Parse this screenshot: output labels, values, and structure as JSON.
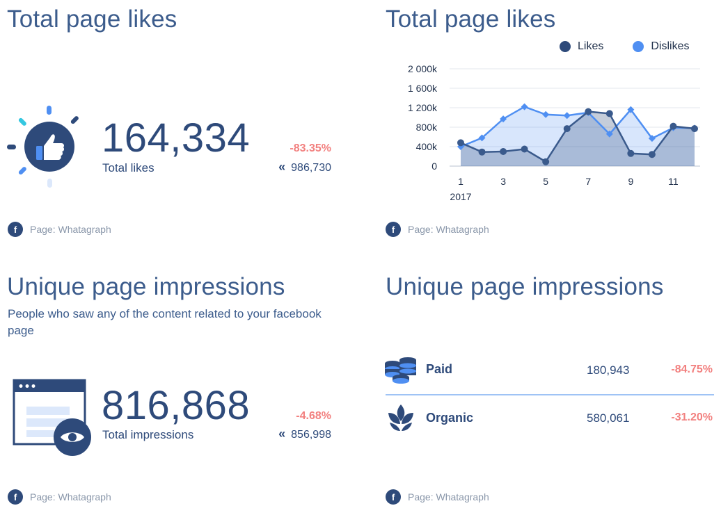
{
  "likes_card": {
    "title": "Total page likes",
    "value": "164,334",
    "label": "Total likes",
    "change": "-83.35%",
    "previous": "986,730",
    "footer": "Page: Whatagraph"
  },
  "likes_chart": {
    "title": "Total page likes",
    "footer": "Page: Whatagraph"
  },
  "impressions_card": {
    "title": "Unique page impressions",
    "description": "People who saw any of the content related to your facebook page",
    "value": "816,868",
    "label": "Total impressions",
    "change": "-4.68%",
    "previous": "856,998",
    "footer": "Page: Whatagraph"
  },
  "impressions_breakdown": {
    "title": "Unique page impressions",
    "rows": [
      {
        "label": "Paid",
        "value": "180,943",
        "change": "-84.75%",
        "icon": "coins-icon"
      },
      {
        "label": "Organic",
        "value": "580,061",
        "change": "-31.20%",
        "icon": "plant-icon"
      }
    ],
    "footer": "Page: Whatagraph"
  },
  "colors": {
    "primary": "#2e4a7a",
    "likes_series": "#3a5a8c",
    "dislikes_series": "#4f8ff2",
    "negative": "#f2807f",
    "muted": "#8a97aa"
  },
  "chart_data": {
    "type": "line",
    "x": [
      1,
      2,
      3,
      4,
      5,
      6,
      7,
      8,
      9,
      10,
      11,
      12
    ],
    "x_tick_labels": [
      "1",
      "3",
      "5",
      "7",
      "9",
      "11"
    ],
    "x_ticks": [
      1,
      3,
      5,
      7,
      9,
      11
    ],
    "x_year_label": "2017",
    "ylim": [
      0,
      2000
    ],
    "y_ticks": [
      0,
      400,
      800,
      1200,
      1600,
      2000
    ],
    "y_tick_labels": [
      "0",
      "400k",
      "800k",
      "1 200k",
      "1 600k",
      "2 000k"
    ],
    "grid": true,
    "legend_position": "top-right",
    "series": [
      {
        "name": "Likes",
        "marker": "circle",
        "color": "#3a5a8c",
        "values": [
          480,
          290,
          300,
          350,
          90,
          770,
          1120,
          1080,
          260,
          240,
          820,
          770
        ]
      },
      {
        "name": "Dislikes",
        "marker": "diamond",
        "color": "#4f8ff2",
        "values": [
          400,
          580,
          970,
          1220,
          1060,
          1040,
          1100,
          660,
          1160,
          570,
          790,
          780
        ]
      }
    ]
  }
}
